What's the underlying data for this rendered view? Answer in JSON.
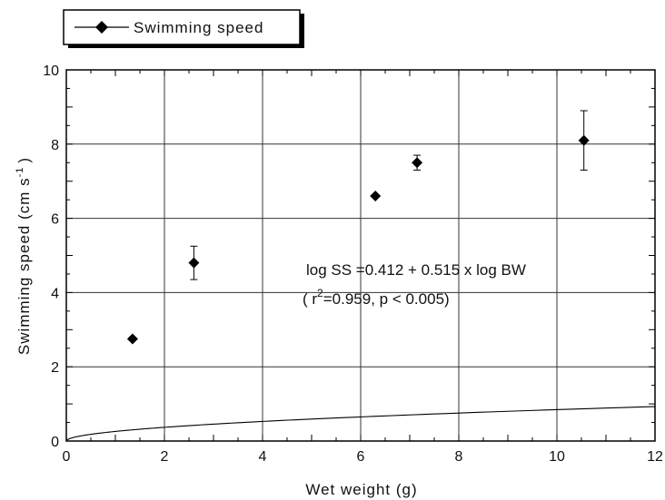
{
  "chart_data": {
    "type": "scatter",
    "title": "",
    "xlabel": "Wet weight (g)",
    "ylabel_main": "Swimming speed (cm s",
    "ylabel_sup": "-1",
    "ylabel_close": ")",
    "xlim": [
      0,
      12
    ],
    "ylim": [
      0,
      10
    ],
    "xticks": [
      0,
      2,
      4,
      6,
      8,
      10,
      12
    ],
    "yticks": [
      0,
      2,
      4,
      6,
      8,
      10
    ],
    "xtick_labels": [
      "0",
      "2",
      "4",
      "6",
      "8",
      "10",
      "12"
    ],
    "ytick_labels": [
      "0",
      "2",
      "4",
      "6",
      "8",
      "10"
    ],
    "grid": true,
    "legend": {
      "placement": "top-left",
      "entries": [
        "Swimming speed"
      ]
    },
    "series": [
      {
        "name": "Swimming speed",
        "marker": "diamond",
        "points": [
          {
            "x": 1.35,
            "y": 2.75,
            "err_low": 0,
            "err_high": 0
          },
          {
            "x": 2.6,
            "y": 4.8,
            "err_low": 0.45,
            "err_high": 0.45
          },
          {
            "x": 6.3,
            "y": 6.6,
            "err_low": 0,
            "err_high": 0
          },
          {
            "x": 7.15,
            "y": 7.5,
            "err_low": 0.2,
            "err_high": 0.2
          },
          {
            "x": 10.55,
            "y": 8.1,
            "err_low": 0.8,
            "err_high": 0.8
          }
        ]
      }
    ],
    "fit": {
      "intercept_log": 0.412,
      "slope": 0.515,
      "x_from": 0.01,
      "x_to": 12
    },
    "annotations": {
      "equation": "log SS =0.412 + 0.515 x log BW",
      "stats_open": "( r",
      "stats_sup": "2",
      "stats_rest": "=0.959, p < 0.005)"
    }
  }
}
